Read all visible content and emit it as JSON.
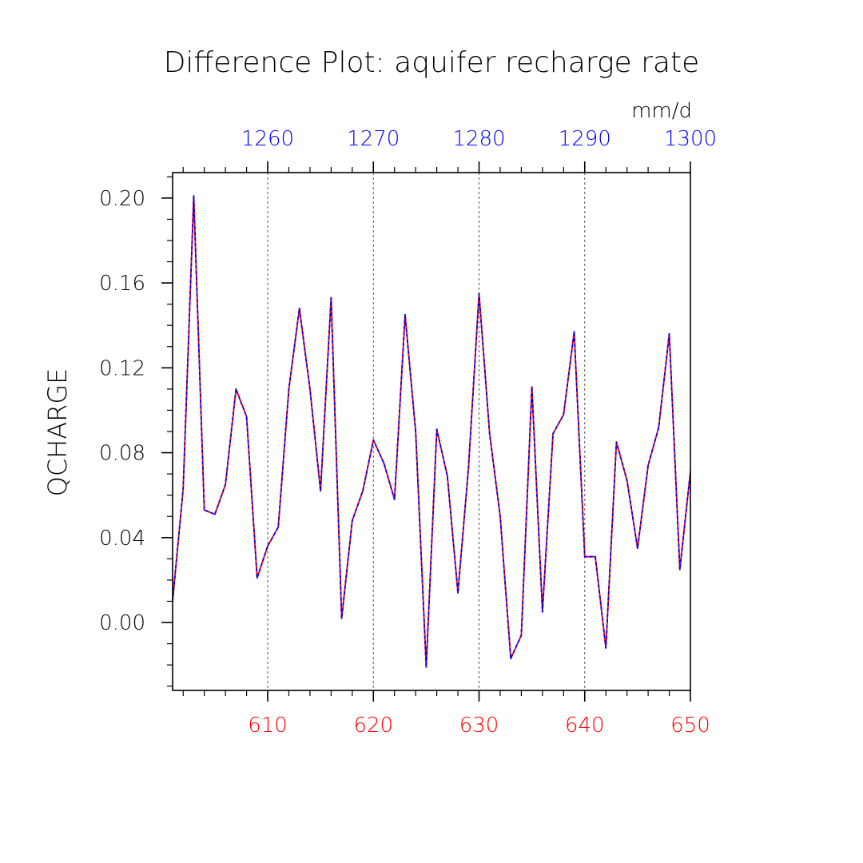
{
  "chart_data": {
    "type": "line",
    "title": "Difference Plot: aquifer recharge rate",
    "units": "mm/d",
    "ylabel": "QCHARGE",
    "xlabel": "",
    "xlim": [
      601,
      650
    ],
    "ylim": [
      -0.032,
      0.212
    ],
    "x_ticks_bottom": [
      610,
      620,
      630,
      640,
      650
    ],
    "x_ticks_top": [
      1260,
      1270,
      1280,
      1290,
      1300
    ],
    "top_axis_offset": 650,
    "y_ticks": [
      "0.00",
      "0.04",
      "0.08",
      "0.12",
      "0.16",
      "0.20"
    ],
    "grid": "vertical dashed",
    "colors": {
      "bottom_axis": "#ff0000",
      "top_axis": "#0000ff",
      "series_a": "#ff0000",
      "series_b": "#0000ff"
    },
    "x": [
      601,
      602,
      603,
      604,
      605,
      606,
      607,
      608,
      609,
      610,
      611,
      612,
      613,
      614,
      615,
      616,
      617,
      618,
      619,
      620,
      621,
      622,
      623,
      624,
      625,
      626,
      627,
      628,
      629,
      630,
      631,
      632,
      633,
      634,
      635,
      636,
      637,
      638,
      639,
      640,
      641,
      642,
      643,
      644,
      645,
      646,
      647,
      648,
      649,
      650
    ],
    "series": [
      {
        "values": [
          0.01,
          0.063,
          0.201,
          0.053,
          0.051,
          0.065,
          0.11,
          0.097,
          0.021,
          0.036,
          0.045,
          0.11,
          0.148,
          0.11,
          0.062,
          0.153,
          0.002,
          0.048,
          0.062,
          0.086,
          0.075,
          0.058,
          0.145,
          0.09,
          -0.021,
          0.091,
          0.069,
          0.014,
          0.073,
          0.155,
          0.089,
          0.05,
          -0.017,
          -0.006,
          0.111,
          0.005,
          0.089,
          0.098,
          0.137,
          0.031,
          0.031,
          -0.012,
          0.085,
          0.067,
          0.035,
          0.074,
          0.092,
          0.136,
          0.025,
          0.071
        ]
      },
      {
        "values": [
          0.01,
          0.063,
          0.201,
          0.053,
          0.051,
          0.065,
          0.11,
          0.097,
          0.021,
          0.036,
          0.045,
          0.11,
          0.148,
          0.11,
          0.062,
          0.153,
          0.002,
          0.048,
          0.062,
          0.086,
          0.075,
          0.058,
          0.145,
          0.09,
          -0.021,
          0.091,
          0.069,
          0.014,
          0.073,
          0.155,
          0.089,
          0.05,
          -0.017,
          -0.006,
          0.111,
          0.005,
          0.089,
          0.098,
          0.137,
          0.031,
          0.031,
          -0.012,
          0.085,
          0.067,
          0.035,
          0.074,
          0.092,
          0.136,
          0.025,
          0.071
        ]
      }
    ]
  }
}
